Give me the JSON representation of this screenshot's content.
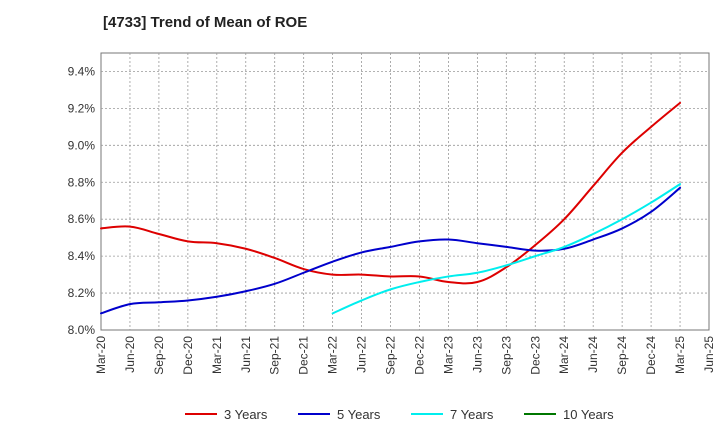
{
  "chart_data": {
    "type": "line",
    "title": "[4733]  Trend of Mean of ROE",
    "x_tick_labels": [
      "Mar-20",
      "Jun-20",
      "Sep-20",
      "Dec-20",
      "Mar-21",
      "Jun-21",
      "Sep-21",
      "Dec-21",
      "Mar-22",
      "Jun-22",
      "Sep-22",
      "Dec-22",
      "Mar-23",
      "Jun-23",
      "Sep-23",
      "Dec-23",
      "Mar-24",
      "Jun-24",
      "Sep-24",
      "Dec-24",
      "Mar-25",
      "Jun-25"
    ],
    "y_tick_labels": [
      "8.0%",
      "8.2%",
      "8.4%",
      "8.6%",
      "8.8%",
      "9.0%",
      "9.2%",
      "9.4%"
    ],
    "ylim": [
      8.0,
      9.5
    ],
    "grid": true,
    "legend_position": "bottom",
    "series": [
      {
        "name": "3 Years",
        "color": "#dd0000",
        "values": [
          8.55,
          8.56,
          8.52,
          8.48,
          8.47,
          8.44,
          8.39,
          8.33,
          8.3,
          8.3,
          8.29,
          8.29,
          8.26,
          8.26,
          8.34,
          8.46,
          8.6,
          8.78,
          8.96,
          9.1,
          9.23,
          null
        ]
      },
      {
        "name": "5 Years",
        "color": "#0000cc",
        "values": [
          8.09,
          8.14,
          8.15,
          8.16,
          8.18,
          8.21,
          8.25,
          8.31,
          8.37,
          8.42,
          8.45,
          8.48,
          8.49,
          8.47,
          8.45,
          8.43,
          8.44,
          8.49,
          8.55,
          8.64,
          8.77,
          null
        ]
      },
      {
        "name": "7 Years",
        "color": "#00eeee",
        "values": [
          null,
          null,
          null,
          null,
          null,
          null,
          null,
          null,
          8.09,
          8.16,
          8.22,
          8.26,
          8.29,
          8.31,
          8.35,
          8.4,
          8.45,
          8.52,
          8.6,
          8.69,
          8.79,
          null
        ]
      },
      {
        "name": "10 Years",
        "color": "#007700",
        "values": [
          null,
          null,
          null,
          null,
          null,
          null,
          null,
          null,
          null,
          null,
          null,
          null,
          null,
          null,
          null,
          null,
          null,
          null,
          null,
          null,
          null,
          null
        ]
      }
    ]
  }
}
